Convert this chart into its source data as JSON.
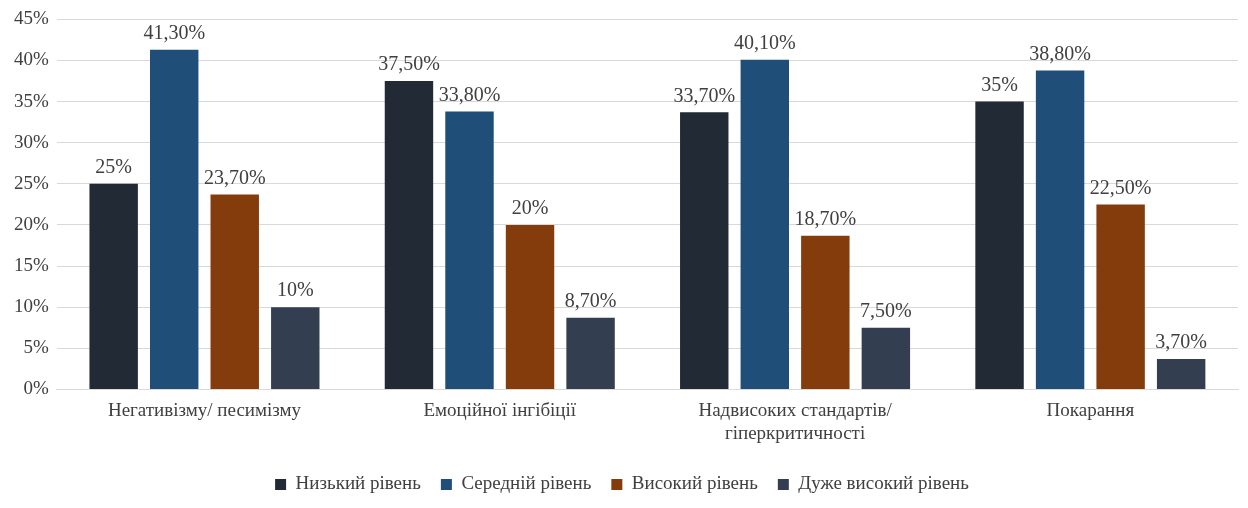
{
  "chart_data": {
    "type": "bar",
    "categories": [
      "Негативізму/ песимізму",
      "Емоційної інгібіції",
      "Надвисоких стандартів/ гіперкритичності",
      "Покарання"
    ],
    "series": [
      {
        "name": "Низький рівень",
        "color": "#222a35",
        "values": [
          25,
          37.5,
          33.7,
          35
        ],
        "value_labels": [
          "25%",
          "37,50%",
          "33,70%",
          "35%"
        ]
      },
      {
        "name": "Середній рівень",
        "color": "#1f4e79",
        "values": [
          41.3,
          33.8,
          40.1,
          38.8
        ],
        "value_labels": [
          "41,30%",
          "33,80%",
          "40,10%",
          "38,80%"
        ]
      },
      {
        "name": "Високий рівень",
        "color": "#843c0c",
        "values": [
          23.7,
          20,
          18.7,
          22.5
        ],
        "value_labels": [
          "23,70%",
          "20%",
          "18,70%",
          "22,50%"
        ]
      },
      {
        "name": "Дуже високий рівень",
        "color": "#333f50",
        "values": [
          10,
          8.7,
          7.5,
          3.7
        ],
        "value_labels": [
          "10%",
          "8,70%",
          "7,50%",
          "3,70%"
        ]
      }
    ],
    "ylim": [
      0,
      45
    ],
    "yticks": [
      {
        "value": 0,
        "label": "0%"
      },
      {
        "value": 5,
        "label": "5%"
      },
      {
        "value": 10,
        "label": "10%"
      },
      {
        "value": 15,
        "label": "15%"
      },
      {
        "value": 20,
        "label": "20%"
      },
      {
        "value": 25,
        "label": "25%"
      },
      {
        "value": 30,
        "label": "30%"
      },
      {
        "value": 35,
        "label": "35%"
      },
      {
        "value": 40,
        "label": "40%"
      },
      {
        "value": 45,
        "label": "45%"
      }
    ],
    "grid": "y",
    "legend": "bottom"
  }
}
